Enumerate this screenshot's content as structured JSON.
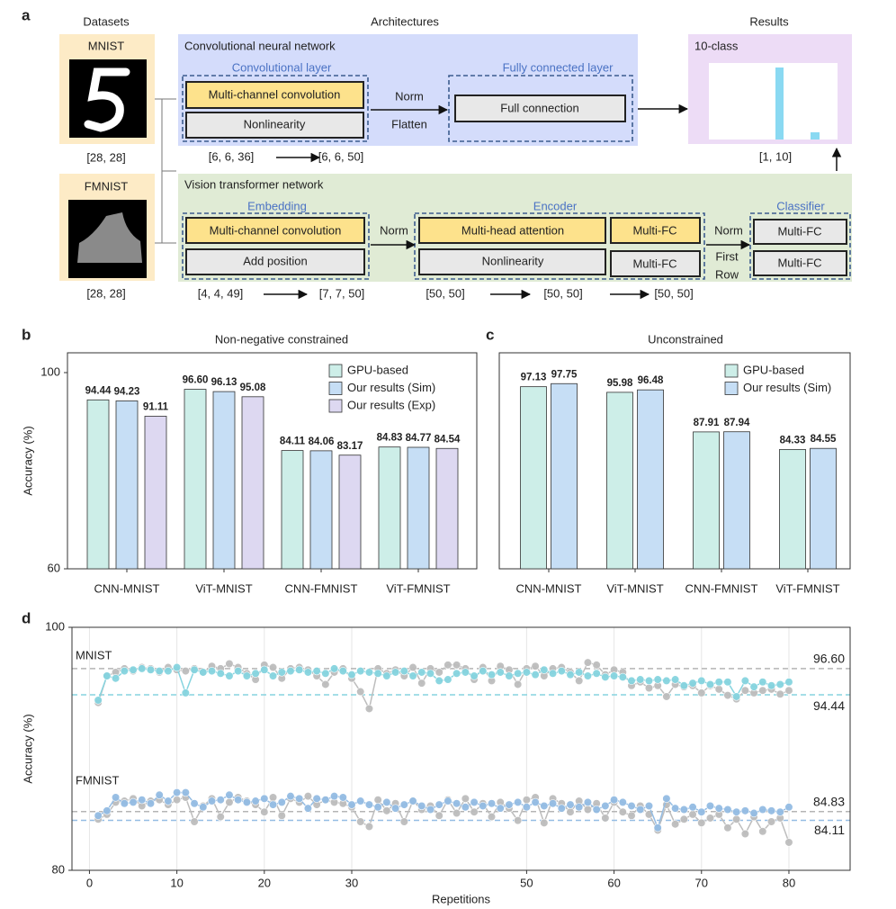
{
  "panel_a": {
    "label": "a",
    "datasets_header": "Datasets",
    "architectures_header": "Architectures",
    "results_header": "Results",
    "mnist": {
      "name": "MNIST",
      "shape": "[28, 28]"
    },
    "fmnist": {
      "name": "FMNIST",
      "shape": "[28, 28]"
    },
    "cnn": {
      "title": "Convolutional neural network",
      "conv_layer": "Convolutional layer",
      "conv": "Multi-channel convolution",
      "nonlin": "Nonlinearity",
      "norm": "Norm",
      "flatten": "Flatten",
      "fc_layer": "Fully connected layer",
      "fc": "Full connection",
      "shape_in": "[6, 6, 36]",
      "shape_out": "[6, 6, 50]"
    },
    "vit": {
      "title": "Vision transformer network",
      "embedding": "Embedding",
      "conv": "Multi-channel convolution",
      "add_pos": "Add position",
      "norm1": "Norm",
      "encoder": "Encoder",
      "mha": "Multi-head attention",
      "nonlin": "Nonlinearity",
      "mfc1": "Multi-FC",
      "mfc2": "Multi-FC",
      "norm2": "Norm",
      "first": "First",
      "row": "Row",
      "classifier": "Classifier",
      "cmfc1": "Multi-FC",
      "cmfc2": "Multi-FC",
      "shapes": [
        "[4, 4, 49]",
        "[7, 7, 50]",
        "[50, 50]",
        "[50, 50]",
        "[50, 50]"
      ]
    },
    "results": {
      "title": "10-class",
      "shape": "[1, 10]"
    }
  },
  "chart_data": [
    {
      "type": "bar",
      "panel_label": "b",
      "title": "Non-negative constrained",
      "y_label": "Accuracy (%)",
      "categories": [
        "CNN-MNIST",
        "ViT-MNIST",
        "CNN-FMNIST",
        "ViT-FMNIST"
      ],
      "series": [
        {
          "name": "GPU-based",
          "color": "#cdeee8",
          "values": [
            94.44,
            96.6,
            84.11,
            84.83
          ],
          "value_labels": [
            "94.44",
            "96.60",
            "84.11",
            "84.83"
          ]
        },
        {
          "name": "Our results (Sim)",
          "color": "#c6def5",
          "values": [
            94.23,
            96.13,
            84.06,
            84.77
          ],
          "value_labels": [
            "94.23",
            "96.13",
            "84.06",
            "84.77"
          ]
        },
        {
          "name": "Our results (Exp)",
          "color": "#ddd8f1",
          "values": [
            91.11,
            95.08,
            83.17,
            84.54
          ],
          "value_labels": [
            "91.11",
            "95.08",
            "83.17",
            "84.54"
          ]
        }
      ],
      "ylim": [
        60,
        100
      ],
      "yticks": [
        60,
        100
      ],
      "legend": "upper right"
    },
    {
      "type": "bar",
      "panel_label": "c",
      "title": "Unconstrained",
      "categories": [
        "CNN-MNIST",
        "ViT-MNIST",
        "CNN-FMNIST",
        "ViT-FMNIST"
      ],
      "series": [
        {
          "name": "GPU-based",
          "color": "#cdeee8",
          "values": [
            97.13,
            95.98,
            87.91,
            84.33
          ],
          "value_labels": [
            "97.13",
            "95.98",
            "87.91",
            "84.33"
          ]
        },
        {
          "name": "Our results (Sim)",
          "color": "#c6def5",
          "values": [
            97.75,
            96.48,
            87.94,
            84.55
          ],
          "value_labels": [
            "97.75",
            "96.48",
            "87.94",
            "84.55"
          ]
        }
      ],
      "ylim": [
        60,
        100
      ],
      "legend": "upper right"
    },
    {
      "type": "line",
      "panel_label": "d",
      "x_label": "Repetitions",
      "y_label": "Accuracy (%)",
      "x": [
        1,
        2,
        3,
        4,
        5,
        6,
        7,
        8,
        9,
        10,
        11,
        12,
        13,
        14,
        15,
        16,
        17,
        18,
        19,
        20,
        21,
        22,
        23,
        24,
        25,
        26,
        27,
        28,
        29,
        30,
        31,
        32,
        33,
        34,
        35,
        36,
        37,
        38,
        39,
        40,
        41,
        42,
        43,
        44,
        45,
        46,
        47,
        48,
        49,
        50,
        51,
        52,
        53,
        54,
        55,
        56,
        57,
        58,
        59,
        60,
        61,
        62,
        63,
        64,
        65,
        66,
        67,
        68,
        69,
        70,
        71,
        72,
        73,
        74,
        75,
        76,
        77,
        78,
        79,
        80
      ],
      "xlim": [
        -2,
        87
      ],
      "xticks": [
        0,
        10,
        20,
        30,
        50,
        60,
        70,
        80
      ],
      "ylim": [
        80,
        100
      ],
      "yticks": [
        80,
        100
      ],
      "grid": true,
      "series": [
        {
          "color": "#bdbdbd",
          "values": [
            93.8,
            96.0,
            96.3,
            96.6,
            96.4,
            96.7,
            96.6,
            96.3,
            96.7,
            96.5,
            96.4,
            96.6,
            96.3,
            96.8,
            96.6,
            97.0,
            96.7,
            96.2,
            95.7,
            96.9,
            96.7,
            95.8,
            96.6,
            96.7,
            96.5,
            96.0,
            95.3,
            96.3,
            96.6,
            95.8,
            94.7,
            93.3,
            96.6,
            96.2,
            96.5,
            96.0,
            96.7,
            95.4,
            96.6,
            96.3,
            96.9,
            96.9,
            96.6,
            95.7,
            96.7,
            95.6,
            96.8,
            96.5,
            95.3,
            96.6,
            96.8,
            96.0,
            96.6,
            96.7,
            96.3,
            95.6,
            97.1,
            96.9,
            96.1,
            96.5,
            96.3,
            95.2,
            95.5,
            95.0,
            95.2,
            94.3,
            95.3,
            95.1,
            95.2,
            94.6,
            95.2,
            94.9,
            94.4,
            94.1,
            94.8,
            94.6,
            94.8,
            94.9,
            94.5,
            94.8
          ]
        },
        {
          "color": "#86d4df",
          "values": [
            94.0,
            96.0,
            95.8,
            96.4,
            96.5,
            96.6,
            96.5,
            96.4,
            96.4,
            96.7,
            94.6,
            96.5,
            96.3,
            96.4,
            96.2,
            96.0,
            96.4,
            96.0,
            96.2,
            96.5,
            96.0,
            96.3,
            96.4,
            96.5,
            96.3,
            96.4,
            96.2,
            96.6,
            96.4,
            96.1,
            96.4,
            96.3,
            96.2,
            96.0,
            96.3,
            96.4,
            96.0,
            96.3,
            96.2,
            95.6,
            95.7,
            96.2,
            96.3,
            96.0,
            96.4,
            96.1,
            96.3,
            96.0,
            96.2,
            96.3,
            96.1,
            96.5,
            96.2,
            96.4,
            96.1,
            96.3,
            96.0,
            96.2,
            95.9,
            96.0,
            95.9,
            95.6,
            95.7,
            95.6,
            95.7,
            95.6,
            95.7,
            95.2,
            95.4,
            95.6,
            95.3,
            95.5,
            95.5,
            94.3,
            95.6,
            95.1,
            95.5,
            95.2,
            95.3,
            95.5
          ]
        },
        {
          "color": "#bdbdbd",
          "values": [
            84.2,
            84.6,
            85.6,
            85.7,
            85.9,
            85.3,
            85.7,
            85.8,
            85.4,
            85.8,
            86.0,
            84.0,
            85.3,
            85.9,
            84.4,
            85.6,
            86.0,
            85.7,
            85.4,
            84.8,
            86.0,
            84.5,
            85.9,
            85.6,
            86.1,
            85.4,
            85.8,
            85.6,
            85.5,
            85.2,
            84.0,
            83.6,
            85.8,
            84.9,
            85.5,
            84.0,
            85.7,
            85.0,
            85.3,
            84.5,
            85.8,
            84.7,
            85.9,
            84.8,
            85.5,
            84.4,
            85.6,
            85.1,
            84.1,
            85.8,
            86.0,
            83.9,
            85.9,
            85.5,
            84.8,
            85.7,
            85.0,
            85.5,
            84.3,
            85.6,
            84.8,
            84.5,
            85.3,
            84.6,
            83.3,
            85.4,
            83.8,
            84.2,
            84.6,
            83.9,
            84.3,
            84.6,
            83.5,
            84.2,
            83.0,
            84.4,
            83.2,
            84.0,
            84.3,
            82.3
          ]
        },
        {
          "color": "#94bce3",
          "values": [
            84.5,
            84.9,
            86.0,
            85.5,
            85.6,
            85.8,
            85.5,
            86.2,
            85.7,
            86.4,
            86.4,
            85.5,
            85.2,
            85.7,
            85.8,
            86.2,
            85.8,
            85.6,
            85.7,
            85.9,
            85.4,
            85.6,
            86.1,
            85.9,
            85.1,
            85.9,
            85.8,
            86.1,
            86.0,
            85.4,
            85.7,
            85.4,
            85.2,
            85.6,
            85.1,
            85.4,
            85.7,
            85.3,
            85.0,
            85.4,
            85.7,
            85.5,
            85.2,
            85.6,
            85.3,
            85.5,
            85.1,
            85.4,
            85.6,
            85.2,
            85.6,
            85.3,
            85.5,
            85.1,
            85.4,
            85.2,
            85.6,
            85.0,
            85.3,
            85.8,
            85.6,
            85.3,
            85.0,
            85.3,
            83.5,
            85.9,
            85.1,
            85.0,
            85.2,
            84.8,
            85.3,
            85.1,
            85.0,
            84.8,
            84.9,
            84.7,
            85.0,
            84.9,
            84.8,
            85.2
          ]
        }
      ],
      "reference_lines": [
        {
          "value": 96.6,
          "label": "96.60",
          "color": "#b5b5b5"
        },
        {
          "value": 94.44,
          "label": "94.44",
          "color": "#86d4df"
        },
        {
          "value": 84.83,
          "label": "84.83",
          "color": "#b5b5b5"
        },
        {
          "value": 84.11,
          "label": "84.11",
          "color": "#94bce3"
        }
      ],
      "annotations": [
        "MNIST",
        "FMNIST"
      ]
    }
  ]
}
